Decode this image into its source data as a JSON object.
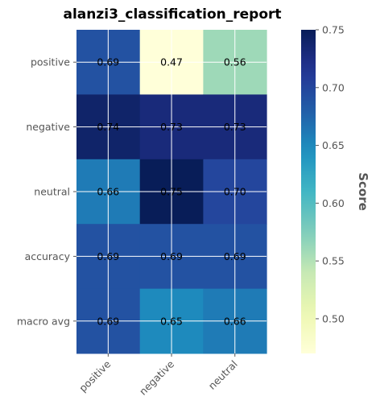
{
  "chart_data": {
    "type": "heatmap",
    "title": "alanzi3_classification_report",
    "rows": [
      "positive",
      "negative",
      "neutral",
      "accuracy",
      "macro avg"
    ],
    "columns": [
      "positive",
      "negative",
      "neutral"
    ],
    "values": [
      [
        0.69,
        0.47,
        0.56
      ],
      [
        0.74,
        0.73,
        0.73
      ],
      [
        0.66,
        0.75,
        0.7
      ],
      [
        0.69,
        0.69,
        0.69
      ],
      [
        0.69,
        0.65,
        0.66
      ]
    ],
    "cell_labels": [
      [
        "0.69",
        "0.47",
        "0.56"
      ],
      [
        "0.74",
        "0.73",
        "0.73"
      ],
      [
        "0.66",
        "0.75",
        "0.70"
      ],
      [
        "0.69",
        "0.69",
        "0.69"
      ],
      [
        "0.69",
        "0.65",
        "0.66"
      ]
    ],
    "colormap": "YlGnBu",
    "colorbar": {
      "label": "Score",
      "range": [
        0.47,
        0.75
      ],
      "ticks": [
        0.5,
        0.55,
        0.6,
        0.65,
        0.7,
        0.75
      ],
      "tick_labels": [
        "0.50",
        "0.55",
        "0.60",
        "0.65",
        "0.70",
        "0.75"
      ]
    },
    "grid": true,
    "colors": {
      "grid": "#ffffff",
      "spine": "#cccccc",
      "tick_text": "#555555",
      "cell_text": "#000000"
    }
  }
}
